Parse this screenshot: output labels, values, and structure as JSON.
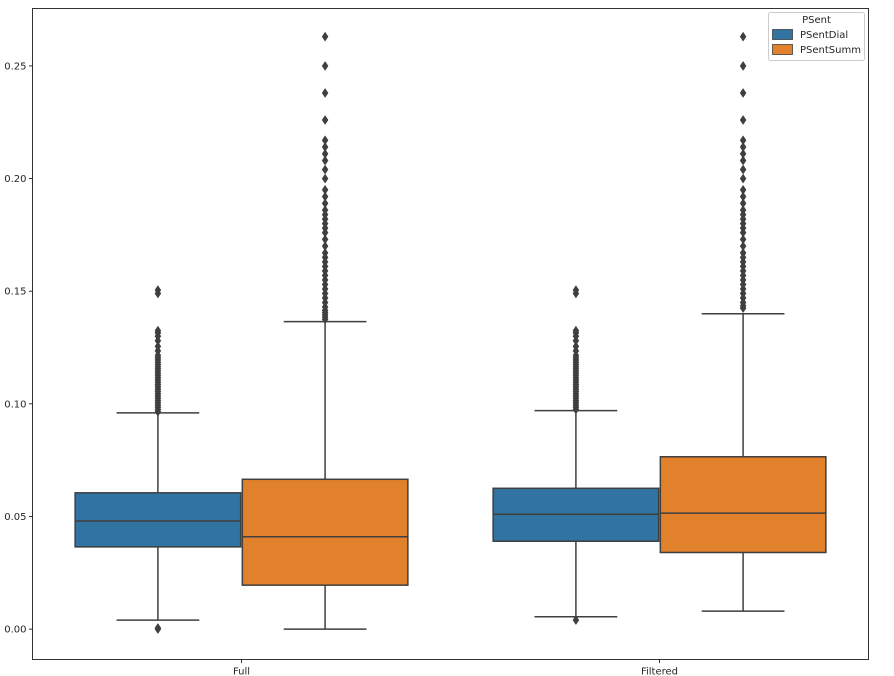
{
  "chart_data": {
    "type": "box",
    "categories": [
      "Full",
      "Filtered"
    ],
    "legend": {
      "title": "PSent",
      "placement": "top-right",
      "entries": [
        "PSentDial",
        "PSentSumm"
      ]
    },
    "yticks": [
      "0.00",
      "0.05",
      "0.10",
      "0.15",
      "0.20",
      "0.25"
    ],
    "yticks_values": [
      0.0,
      0.05,
      0.1,
      0.15,
      0.2,
      0.25
    ],
    "ylim": [
      -0.0135,
      0.2755
    ],
    "grid": false,
    "colors": {
      "PSentDial": "#3274a1",
      "PSentSumm": "#e1812c",
      "stroke": "#3f3f3f"
    },
    "series": [
      {
        "name": "PSentDial",
        "color": "#3274a1",
        "boxes": [
          {
            "category": "Full",
            "whisker_low": 0.004,
            "q1": 0.0365,
            "median": 0.048,
            "q3": 0.0605,
            "whisker_high": 0.096,
            "outliers": [
              0.0,
              0.0005,
              0.0965,
              0.0975,
              0.0985,
              0.0995,
              0.1005,
              0.1015,
              0.1025,
              0.1035,
              0.1045,
              0.1055,
              0.1065,
              0.1075,
              0.1085,
              0.1095,
              0.1105,
              0.1115,
              0.1125,
              0.1135,
              0.1145,
              0.1155,
              0.1165,
              0.1175,
              0.1185,
              0.1195,
              0.1205,
              0.1215,
              0.1235,
              0.1255,
              0.128,
              0.13,
              0.1315,
              0.1325,
              0.149,
              0.1505
            ]
          },
          {
            "category": "Filtered",
            "whisker_low": 0.0055,
            "q1": 0.039,
            "median": 0.051,
            "q3": 0.0625,
            "whisker_high": 0.097,
            "outliers": [
              0.004,
              0.0975,
              0.0985,
              0.0995,
              0.1005,
              0.1015,
              0.1025,
              0.1035,
              0.1045,
              0.1055,
              0.1065,
              0.1075,
              0.1085,
              0.1095,
              0.1105,
              0.1115,
              0.1125,
              0.1135,
              0.1145,
              0.1155,
              0.1165,
              0.1175,
              0.1185,
              0.1195,
              0.1205,
              0.1215,
              0.1235,
              0.1255,
              0.128,
              0.13,
              0.1315,
              0.1325,
              0.149,
              0.1505
            ]
          }
        ]
      },
      {
        "name": "PSentSumm",
        "color": "#e1812c",
        "boxes": [
          {
            "category": "Full",
            "whisker_low": 0.0,
            "q1": 0.0195,
            "median": 0.041,
            "q3": 0.0665,
            "whisker_high": 0.1365,
            "outliers": [
              0.1375,
              0.1385,
              0.1395,
              0.1405,
              0.1415,
              0.143,
              0.145,
              0.147,
              0.149,
              0.151,
              0.153,
              0.155,
              0.157,
              0.159,
              0.161,
              0.163,
              0.165,
              0.167,
              0.17,
              0.173,
              0.176,
              0.178,
              0.18,
              0.182,
              0.184,
              0.186,
              0.189,
              0.192,
              0.195,
              0.2,
              0.204,
              0.208,
              0.211,
              0.214,
              0.217,
              0.226,
              0.238,
              0.25,
              0.263
            ]
          },
          {
            "category": "Filtered",
            "whisker_low": 0.008,
            "q1": 0.034,
            "median": 0.0515,
            "q3": 0.0765,
            "whisker_high": 0.14,
            "outliers": [
              0.1425,
              0.1435,
              0.145,
              0.147,
              0.149,
              0.151,
              0.153,
              0.155,
              0.157,
              0.159,
              0.161,
              0.163,
              0.165,
              0.167,
              0.17,
              0.173,
              0.176,
              0.178,
              0.18,
              0.182,
              0.184,
              0.186,
              0.189,
              0.192,
              0.195,
              0.2,
              0.204,
              0.208,
              0.211,
              0.214,
              0.217,
              0.226,
              0.238,
              0.25,
              0.263
            ]
          }
        ]
      }
    ]
  }
}
